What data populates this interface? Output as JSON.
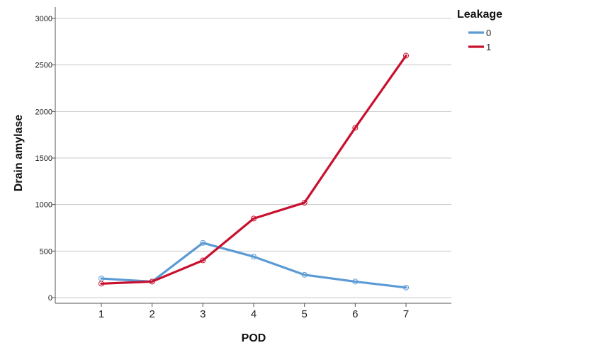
{
  "chart_data": {
    "type": "line",
    "xlabel": "POD",
    "ylabel": "Drain amylase",
    "x": [
      1,
      2,
      3,
      4,
      5,
      6,
      7
    ],
    "ylim": [
      0,
      3000
    ],
    "yticks": [
      0,
      500,
      1000,
      1500,
      2000,
      2500,
      3000
    ],
    "grid": true,
    "legend": {
      "title": "Leakage",
      "placement": "top-right-outside"
    },
    "series": [
      {
        "name": "0",
        "color": "#5b9bd5",
        "values": [
          205,
          172,
          588,
          440,
          245,
          172,
          108
        ]
      },
      {
        "name": "1",
        "color": "#c8102e",
        "values": [
          150,
          172,
          400,
          850,
          1020,
          1825,
          2600
        ]
      }
    ]
  }
}
